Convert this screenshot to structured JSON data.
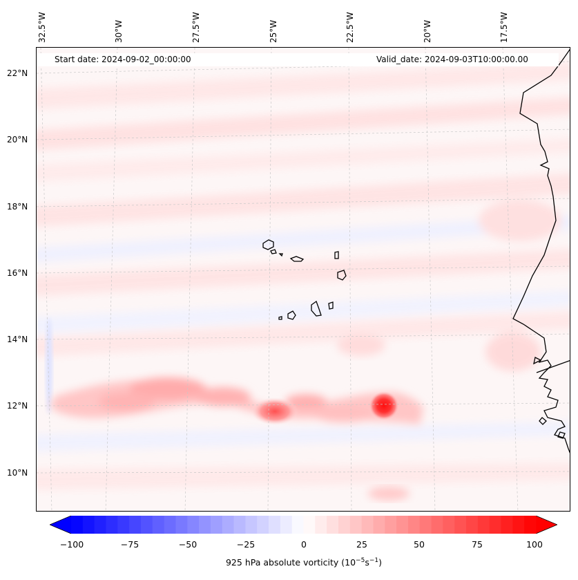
{
  "header": {
    "start_label": "Start date: 2024-09-02_00:00:00",
    "valid_label": "Valid_date: 2024-09-03T10:00:00.00"
  },
  "map": {
    "longitude_labels": [
      "32.5°W",
      "30°W",
      "27.5°W",
      "25°W",
      "22.5°W",
      "20°W",
      "17.5°W"
    ],
    "latitude_labels": [
      "22°N",
      "20°N",
      "18°N",
      "16°N",
      "14°N",
      "12°N",
      "10°N"
    ],
    "field": "925 hPa absolute vorticity",
    "features": [
      "Cape Verde islands",
      "West African coastline",
      "vorticity maximum near 12°N 21.5°W",
      "elongated positive vorticity band near 12°N"
    ]
  },
  "colorbar": {
    "ticks": [
      "−100",
      "−75",
      "−50",
      "−25",
      "0",
      "25",
      "50",
      "75",
      "100"
    ],
    "label_main": "925 hPa absolute vorticity (10",
    "label_exp1": "−5",
    "label_mid": "s",
    "label_exp2": "−1",
    "label_end": ")",
    "min": -100,
    "max": 100,
    "negative_color": "#0000ff",
    "positive_color": "#ff0000",
    "neutral_color": "#ffffff"
  }
}
